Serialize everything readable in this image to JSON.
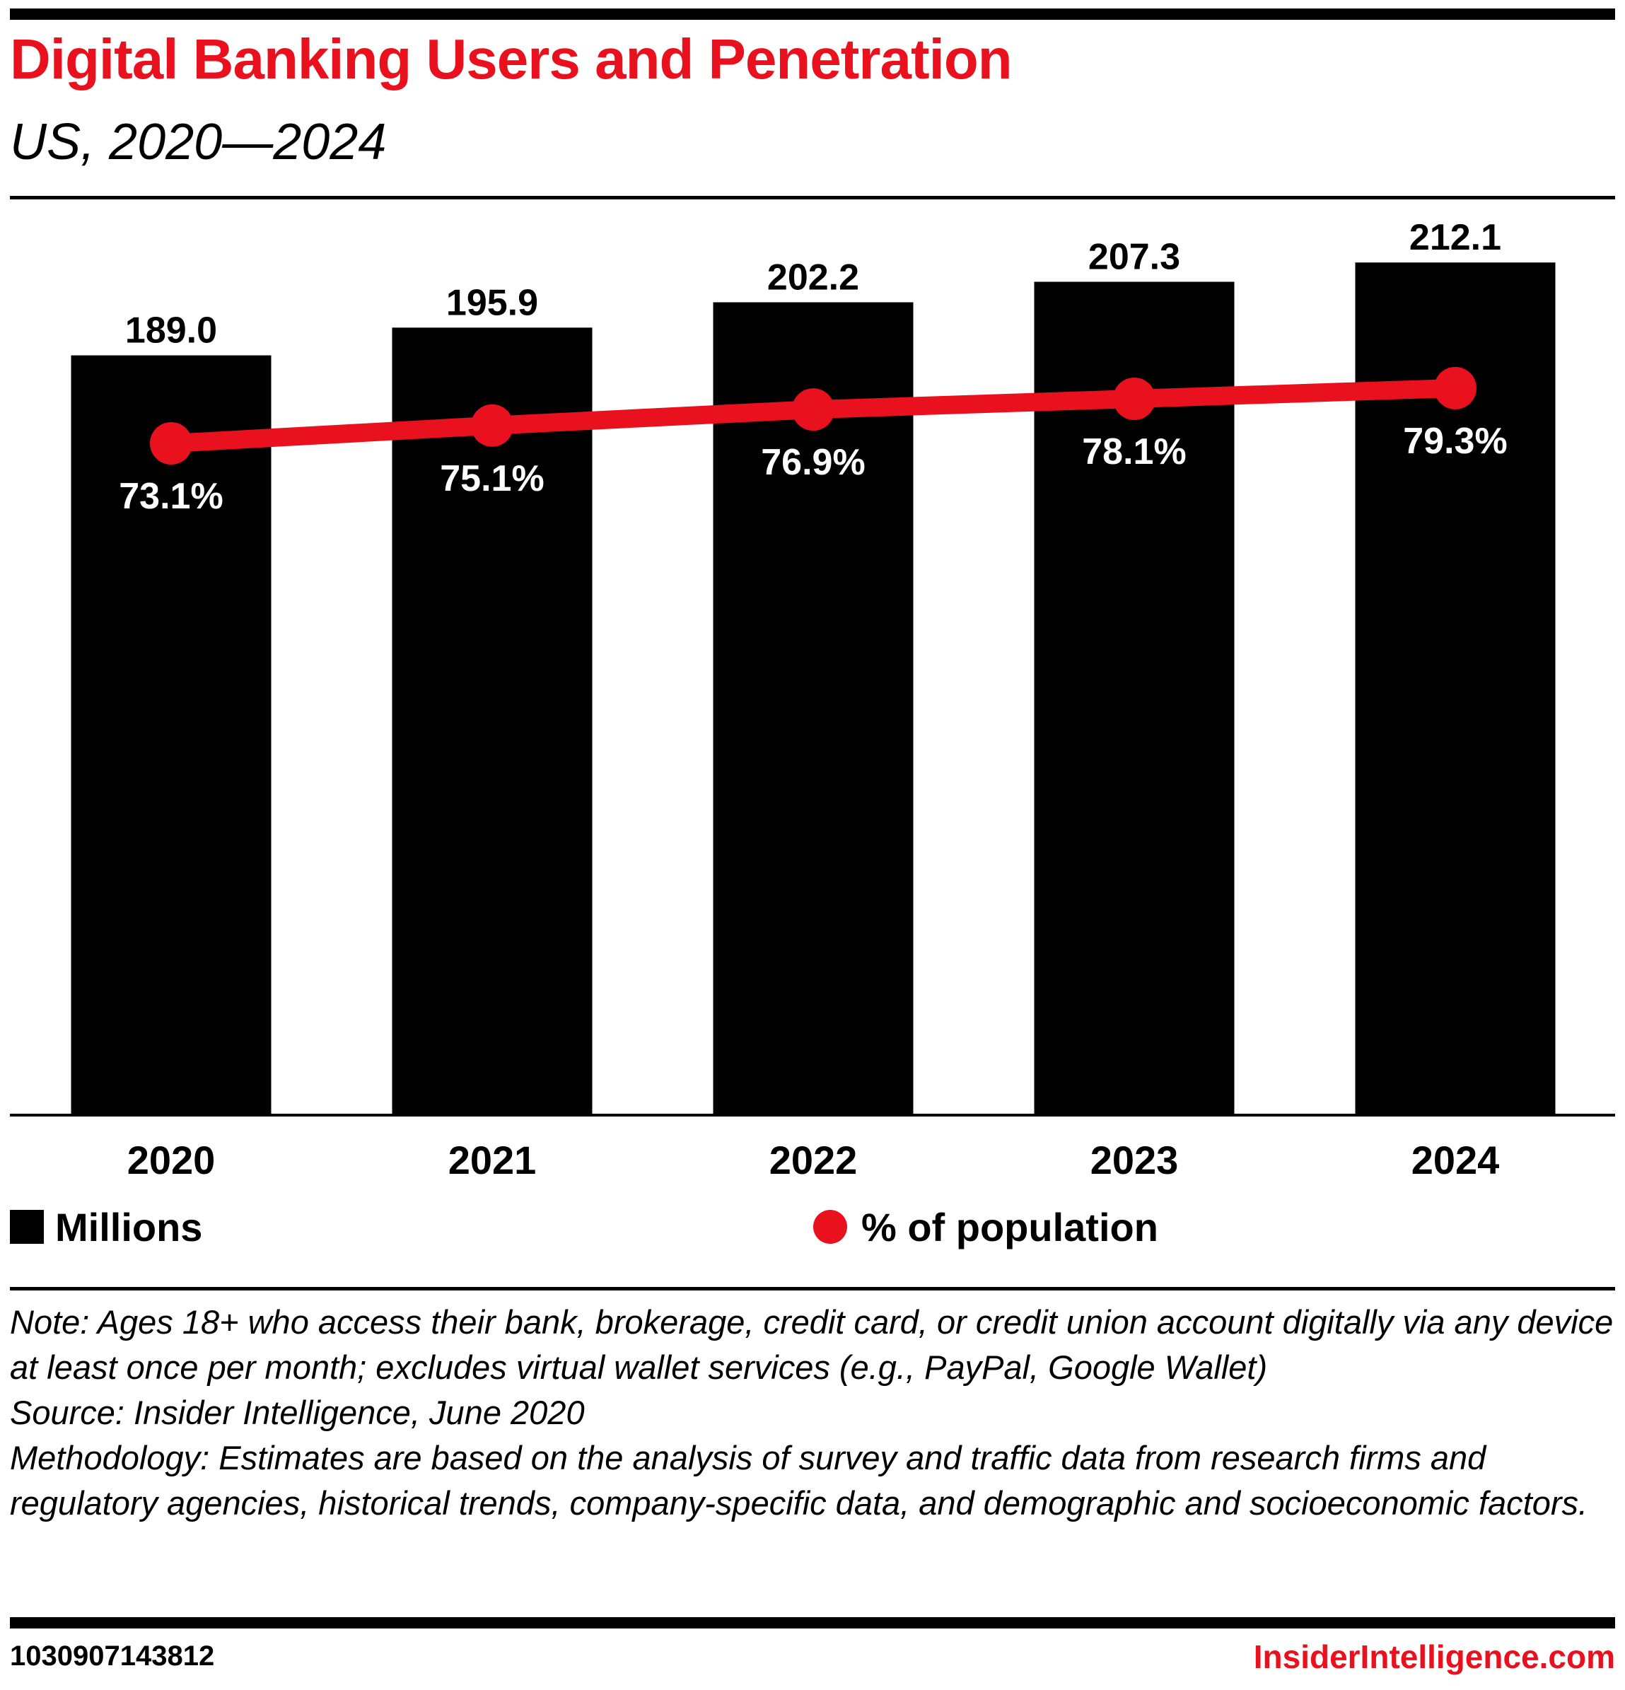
{
  "header": {
    "title": "Digital Banking Users and Penetration",
    "subtitle": "US, 2020—2024"
  },
  "legend": {
    "bars_label": "Millions",
    "line_label": "% of population"
  },
  "notes": {
    "note": "Note: Ages 18+ who access their bank, brokerage, credit card, or credit union account digitally via any device at least once per month; excludes virtual wallet services (e.g., PayPal, Google Wallet)",
    "source": "Source: Insider Intelligence, June 2020",
    "methodology": "Methodology: Estimates are based on the analysis of survey and traffic data from research firms and regulatory agencies, historical trends, company-specific data, and demographic and socioeconomic factors."
  },
  "footer": {
    "chart_id": "1030907143812",
    "brand": "InsiderIntelligence.com"
  },
  "colors": {
    "accent": "#e8111d",
    "bar": "#000000",
    "background": "#ffffff"
  },
  "chart_data": {
    "type": "bar",
    "title": "Digital Banking Users and Penetration",
    "subtitle": "US, 2020—2024",
    "categories": [
      "2020",
      "2021",
      "2022",
      "2023",
      "2024"
    ],
    "series": [
      {
        "name": "Millions",
        "type": "bar",
        "values": [
          189.0,
          195.9,
          202.2,
          207.3,
          212.1
        ],
        "labels": [
          "189.0",
          "195.9",
          "202.2",
          "207.3",
          "212.1"
        ],
        "color": "#000000"
      },
      {
        "name": "% of population",
        "type": "line",
        "values": [
          73.1,
          75.1,
          76.9,
          78.1,
          79.3
        ],
        "labels": [
          "73.1%",
          "75.1%",
          "76.9%",
          "78.1%",
          "79.3%"
        ],
        "color": "#e8111d"
      }
    ],
    "xlabel": "",
    "ylabel": "",
    "ylim": [
      0,
      212.1
    ],
    "grid": false,
    "legend_position": "bottom"
  }
}
